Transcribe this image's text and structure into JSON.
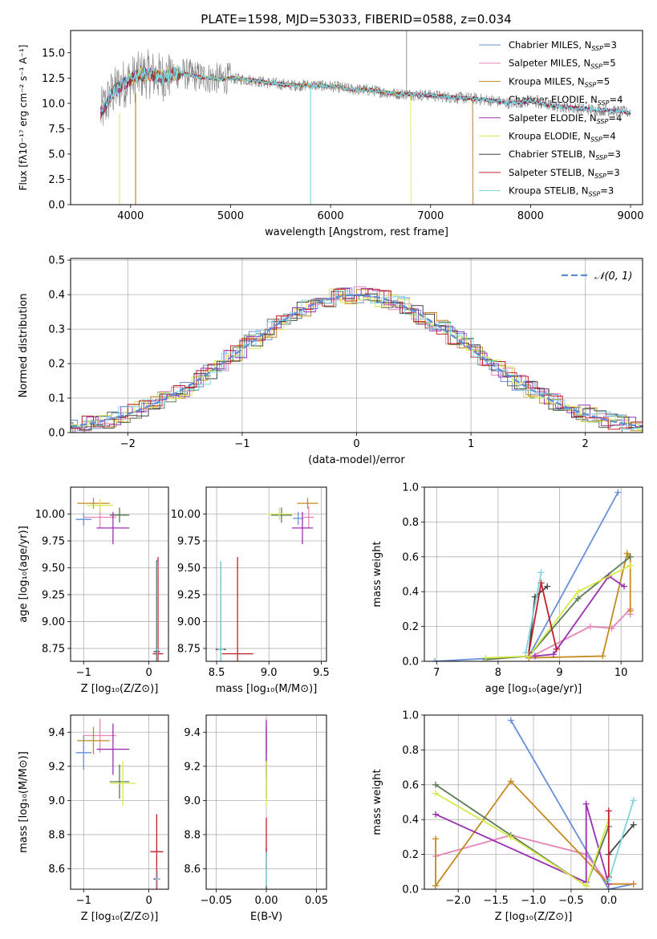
{
  "figure": {
    "title": "PLATE=1598, MJD=53033, FIBERID=0588, z=0.034"
  },
  "models": [
    {
      "name": "Chabrier MILES",
      "nssp": "3",
      "color": "#6a8fd8"
    },
    {
      "name": "Salpeter MILES",
      "nssp": "5",
      "color": "#e686b8"
    },
    {
      "name": "Kroupa MILES",
      "nssp": "5",
      "color": "#c58a1e"
    },
    {
      "name": "Chabrier ELODIE",
      "nssp": "4",
      "color": "#5a7a55"
    },
    {
      "name": "Salpeter ELODIE",
      "nssp": "4",
      "color": "#9a30b0"
    },
    {
      "name": "Kroupa ELODIE",
      "nssp": "4",
      "color": "#d6e84a"
    },
    {
      "name": "Chabrier STELIB",
      "nssp": "3",
      "color": "#444444"
    },
    {
      "name": "Salpeter STELIB",
      "nssp": "3",
      "color": "#c0202a"
    },
    {
      "name": "Kroupa STELIB",
      "nssp": "3",
      "color": "#7fd6e0"
    }
  ],
  "chart_data": [
    {
      "id": "spectrum",
      "type": "line",
      "title": "PLATE=1598, MJD=53033, FIBERID=0588, z=0.034",
      "xlabel": "wavelength [Angstrom, rest frame]",
      "ylabel": "Flux [fλ10⁻¹⁷ erg cm⁻² s⁻¹ A⁻¹]",
      "xlim": [
        3400,
        9120
      ],
      "ylim": [
        0,
        17.2
      ],
      "xticks": [
        4000,
        5000,
        6000,
        7000,
        8000,
        9000
      ],
      "yticks": [
        0.0,
        2.5,
        5.0,
        7.5,
        10.0,
        12.5,
        15.0
      ],
      "legend": "top-right",
      "grid": false,
      "continuum": [
        [
          3700,
          9.0
        ],
        [
          3800,
          10.8
        ],
        [
          3900,
          11.8
        ],
        [
          4000,
          12.3
        ],
        [
          4100,
          12.8
        ],
        [
          4200,
          12.9
        ],
        [
          4300,
          12.6
        ],
        [
          4400,
          12.8
        ],
        [
          4500,
          13.0
        ],
        [
          4600,
          12.8
        ],
        [
          4700,
          12.6
        ],
        [
          4800,
          12.5
        ],
        [
          4900,
          12.4
        ],
        [
          5000,
          12.5
        ],
        [
          5200,
          12.3
        ],
        [
          5400,
          12.0
        ],
        [
          5600,
          11.8
        ],
        [
          5800,
          11.8
        ],
        [
          6000,
          11.7
        ],
        [
          6200,
          11.4
        ],
        [
          6400,
          11.3
        ],
        [
          6600,
          11.0
        ],
        [
          6800,
          10.9
        ],
        [
          7000,
          10.8
        ],
        [
          7200,
          10.6
        ],
        [
          7400,
          10.5
        ],
        [
          7600,
          10.3
        ],
        [
          7800,
          10.0
        ],
        [
          8000,
          10.2
        ],
        [
          8200,
          9.8
        ],
        [
          8400,
          9.6
        ],
        [
          8600,
          9.4
        ],
        [
          8800,
          9.3
        ],
        [
          9000,
          9.1
        ]
      ]
    },
    {
      "id": "residuals",
      "type": "bar",
      "xlabel": "(data-model)/error",
      "ylabel": "Normed distribution",
      "xlim": [
        -2.5,
        2.5
      ],
      "ylim": [
        0,
        0.505
      ],
      "xticks": [
        -2,
        -1,
        0,
        1,
        2
      ],
      "yticks": [
        0.0,
        0.1,
        0.2,
        0.3,
        0.4,
        0.5
      ],
      "legend": "top-right",
      "legend_label": "𝒩(0, 1)",
      "grid": true
    },
    {
      "id": "age-vs-z",
      "type": "scatter",
      "xlabel": "Z [log₁₀(Z/Z⊙)]",
      "ylabel": "age  [log₁₀(age/yr)]",
      "xlim": [
        -1.2,
        0.3
      ],
      "ylim": [
        8.63,
        10.25
      ],
      "xticks": [
        -1,
        0
      ],
      "yticks": [
        8.75,
        9.0,
        9.25,
        9.5,
        9.75,
        10.0
      ],
      "grid": true,
      "points": [
        {
          "model": 0,
          "x": -1.0,
          "y": 9.95,
          "xerr": 0.12,
          "yerr": 0.06
        },
        {
          "model": 1,
          "x": -0.75,
          "y": 9.97,
          "xerr": 0.25,
          "yerr": 0.1
        },
        {
          "model": 2,
          "x": -0.85,
          "y": 10.1,
          "xerr": 0.25,
          "yerr": 0.05
        },
        {
          "model": 3,
          "x": -0.45,
          "y": 9.99,
          "xerr": 0.15,
          "yerr": 0.07
        },
        {
          "model": 4,
          "x": -0.55,
          "y": 9.87,
          "xerr": 0.25,
          "yerr": 0.15
        },
        {
          "model": 5,
          "x": -0.75,
          "y": 10.08,
          "xerr": 0.2,
          "yerr": 0.06
        },
        {
          "model": 6,
          "x": 0.12,
          "y": 8.72,
          "xerr": 0.05,
          "yerr": 0.85
        },
        {
          "model": 7,
          "x": 0.14,
          "y": 8.7,
          "xerr": 0.08,
          "yerr": 0.9
        },
        {
          "model": 8,
          "x": 0.13,
          "y": 8.74,
          "xerr": 0.03,
          "yerr": 0.82
        }
      ]
    },
    {
      "id": "age-vs-mass",
      "type": "scatter",
      "xlabel": "mass [log₁₀(M/M⊙)]",
      "ylabel": "",
      "xlim": [
        8.4,
        9.55
      ],
      "ylim": [
        8.63,
        10.25
      ],
      "xticks": [
        8.5,
        9.0,
        9.5
      ],
      "yticks": [
        8.75,
        9.0,
        9.25,
        9.5,
        9.75,
        10.0
      ],
      "grid": true,
      "points": [
        {
          "model": 0,
          "x": 9.28,
          "y": 9.96,
          "xerr": 0.05,
          "yerr": 0.06
        },
        {
          "model": 1,
          "x": 9.38,
          "y": 9.97,
          "xerr": 0.05,
          "yerr": 0.1
        },
        {
          "model": 2,
          "x": 9.37,
          "y": 10.1,
          "xerr": 0.1,
          "yerr": 0.05
        },
        {
          "model": 3,
          "x": 9.12,
          "y": 9.99,
          "xerr": 0.1,
          "yerr": 0.07
        },
        {
          "model": 4,
          "x": 9.32,
          "y": 9.87,
          "xerr": 0.1,
          "yerr": 0.15
        },
        {
          "model": 5,
          "x": 9.1,
          "y": 10.0,
          "xerr": 0.12,
          "yerr": 0.06
        },
        {
          "model": 6,
          "x": 8.54,
          "y": 8.74,
          "xerr": 0.05,
          "yerr": 0.82
        },
        {
          "model": 7,
          "x": 8.7,
          "y": 8.7,
          "xerr": 0.15,
          "yerr": 0.9
        },
        {
          "model": 8,
          "x": 8.54,
          "y": 8.74,
          "xerr": 0.03,
          "yerr": 0.82
        }
      ]
    },
    {
      "id": "massweight-vs-age",
      "type": "line",
      "xlabel": "age  [log₁₀(age/yr)]",
      "ylabel": "mass weight",
      "xlim": [
        6.8,
        10.35
      ],
      "ylim": [
        0,
        1.0
      ],
      "xticks": [
        7,
        8,
        9,
        10
      ],
      "yticks": [
        0.0,
        0.2,
        0.4,
        0.6,
        0.8,
        1.0
      ],
      "grid": true,
      "series": [
        {
          "model": 0,
          "x": [
            6.97,
            8.5,
            9.95
          ],
          "y": [
            0.0,
            0.03,
            0.97
          ]
        },
        {
          "model": 1,
          "x": [
            8.5,
            9.5,
            9.85,
            10.15,
            10.15
          ],
          "y": [
            0.02,
            0.2,
            0.19,
            0.3,
            0.27
          ]
        },
        {
          "model": 2,
          "x": [
            8.5,
            9.7,
            10.1,
            10.15,
            10.15
          ],
          "y": [
            0.02,
            0.03,
            0.62,
            0.6,
            0.29
          ]
        },
        {
          "model": 3,
          "x": [
            7.8,
            8.5,
            9.3,
            10.15
          ],
          "y": [
            0.01,
            0.03,
            0.36,
            0.6
          ]
        },
        {
          "model": 4,
          "x": [
            8.6,
            8.9,
            9.8,
            10.05
          ],
          "y": [
            0.03,
            0.04,
            0.49,
            0.43
          ]
        },
        {
          "model": 5,
          "x": [
            7.8,
            8.5,
            9.3,
            10.15
          ],
          "y": [
            0.02,
            0.03,
            0.4,
            0.55
          ]
        },
        {
          "model": 6,
          "x": [
            8.5,
            8.6,
            8.8
          ],
          "y": [
            0.05,
            0.37,
            0.43
          ]
        },
        {
          "model": 7,
          "x": [
            8.5,
            8.7,
            8.95
          ],
          "y": [
            0.05,
            0.45,
            0.07
          ]
        },
        {
          "model": 8,
          "x": [
            8.45,
            8.7
          ],
          "y": [
            0.05,
            0.51
          ]
        }
      ]
    },
    {
      "id": "mass-vs-z",
      "type": "scatter",
      "xlabel": "Z [log₁₀(Z/Z⊙)]",
      "ylabel": "mass [log₁₀(M/M⊙)]",
      "xlim": [
        -1.2,
        0.3
      ],
      "ylim": [
        8.48,
        9.5
      ],
      "xticks": [
        -1,
        0
      ],
      "yticks": [
        8.6,
        8.8,
        9.0,
        9.2,
        9.4
      ],
      "grid": true,
      "points": [
        {
          "model": 0,
          "x": -1.0,
          "y": 9.28,
          "xerr": 0.12,
          "yerr": 0.1
        },
        {
          "model": 1,
          "x": -0.75,
          "y": 9.38,
          "xerr": 0.25,
          "yerr": 0.1
        },
        {
          "model": 2,
          "x": -0.85,
          "y": 9.35,
          "xerr": 0.25,
          "yerr": 0.08
        },
        {
          "model": 3,
          "x": -0.45,
          "y": 9.11,
          "xerr": 0.15,
          "yerr": 0.1
        },
        {
          "model": 4,
          "x": -0.55,
          "y": 9.3,
          "xerr": 0.25,
          "yerr": 0.15
        },
        {
          "model": 5,
          "x": -0.4,
          "y": 9.1,
          "xerr": 0.2,
          "yerr": 0.13
        },
        {
          "model": 6,
          "x": 0.12,
          "y": 8.54,
          "xerr": 0.05,
          "yerr": 0.05
        },
        {
          "model": 7,
          "x": 0.12,
          "y": 8.7,
          "xerr": 0.1,
          "yerr": 0.22
        },
        {
          "model": 8,
          "x": 0.13,
          "y": 8.54,
          "xerr": 0.03,
          "yerr": 0.05
        }
      ]
    },
    {
      "id": "mass-vs-ebv",
      "type": "scatter",
      "xlabel": "E(B-V)",
      "ylabel": "",
      "xlim": [
        -0.06,
        0.06
      ],
      "ylim": [
        8.48,
        9.5
      ],
      "xticks": [
        -0.05,
        0.0,
        0.05
      ],
      "yticks": [
        8.6,
        8.8,
        9.0,
        9.2,
        9.4
      ],
      "grid": true,
      "points": [
        {
          "model": 0,
          "x": 0.0,
          "y": 9.28,
          "xerr": 0,
          "yerr": 0.1
        },
        {
          "model": 1,
          "x": 0.0,
          "y": 9.38,
          "xerr": 0,
          "yerr": 0.1
        },
        {
          "model": 2,
          "x": 0.0,
          "y": 9.35,
          "xerr": 0,
          "yerr": 0.08
        },
        {
          "model": 3,
          "x": 0.0,
          "y": 9.11,
          "xerr": 0,
          "yerr": 0.1
        },
        {
          "model": 4,
          "x": 0.0,
          "y": 9.3,
          "xerr": 0,
          "yerr": 0.17
        },
        {
          "model": 5,
          "x": 0.0,
          "y": 9.1,
          "xerr": 0,
          "yerr": 0.13
        },
        {
          "model": 6,
          "x": 0.0,
          "y": 8.6,
          "xerr": 0,
          "yerr": 0.12
        },
        {
          "model": 7,
          "x": 0.0,
          "y": 8.75,
          "xerr": 0,
          "yerr": 0.15
        },
        {
          "model": 8,
          "x": 0.0,
          "y": 8.6,
          "xerr": 0,
          "yerr": 0.1
        }
      ]
    },
    {
      "id": "massweight-vs-z",
      "type": "line",
      "xlabel": "Z [log₁₀(Z/Z⊙)]",
      "ylabel": "mass weight",
      "xlim": [
        -2.45,
        0.45
      ],
      "ylim": [
        0,
        1.0
      ],
      "xticks": [
        -2.0,
        -1.5,
        -1.0,
        -0.5,
        0.0
      ],
      "yticks": [
        0.0,
        0.2,
        0.4,
        0.6,
        0.8,
        1.0
      ],
      "grid": true,
      "series": [
        {
          "model": 0,
          "x": [
            -1.3,
            0.0,
            0.33
          ],
          "y": [
            0.97,
            0.0,
            0.03
          ]
        },
        {
          "model": 1,
          "x": [
            -2.3,
            -1.3,
            -0.3,
            0.0,
            0.33
          ],
          "y": [
            0.19,
            0.31,
            0.2,
            0.03,
            0.03
          ]
        },
        {
          "model": 2,
          "x": [
            -2.3,
            -2.3,
            -1.3,
            0.0,
            0.0,
            0.33
          ],
          "y": [
            0.29,
            0.02,
            0.62,
            0.03,
            0.03,
            0.03
          ]
        },
        {
          "model": 3,
          "x": [
            -2.3,
            -1.3,
            -0.3,
            0.0
          ],
          "y": [
            0.6,
            0.31,
            0.02,
            0.36
          ]
        },
        {
          "model": 4,
          "x": [
            -2.3,
            -0.3,
            -0.3,
            0.0
          ],
          "y": [
            0.43,
            0.04,
            0.49,
            0.03
          ]
        },
        {
          "model": 5,
          "x": [
            -2.3,
            -1.3,
            -0.3,
            0.0
          ],
          "y": [
            0.55,
            0.3,
            0.02,
            0.4
          ]
        },
        {
          "model": 6,
          "x": [
            0.0,
            0.33
          ],
          "y": [
            0.2,
            0.37
          ]
        },
        {
          "model": 7,
          "x": [
            0.0,
            0.0
          ],
          "y": [
            0.45,
            0.07
          ]
        },
        {
          "model": 8,
          "x": [
            0.0,
            0.33
          ],
          "y": [
            0.05,
            0.51
          ]
        }
      ]
    }
  ]
}
